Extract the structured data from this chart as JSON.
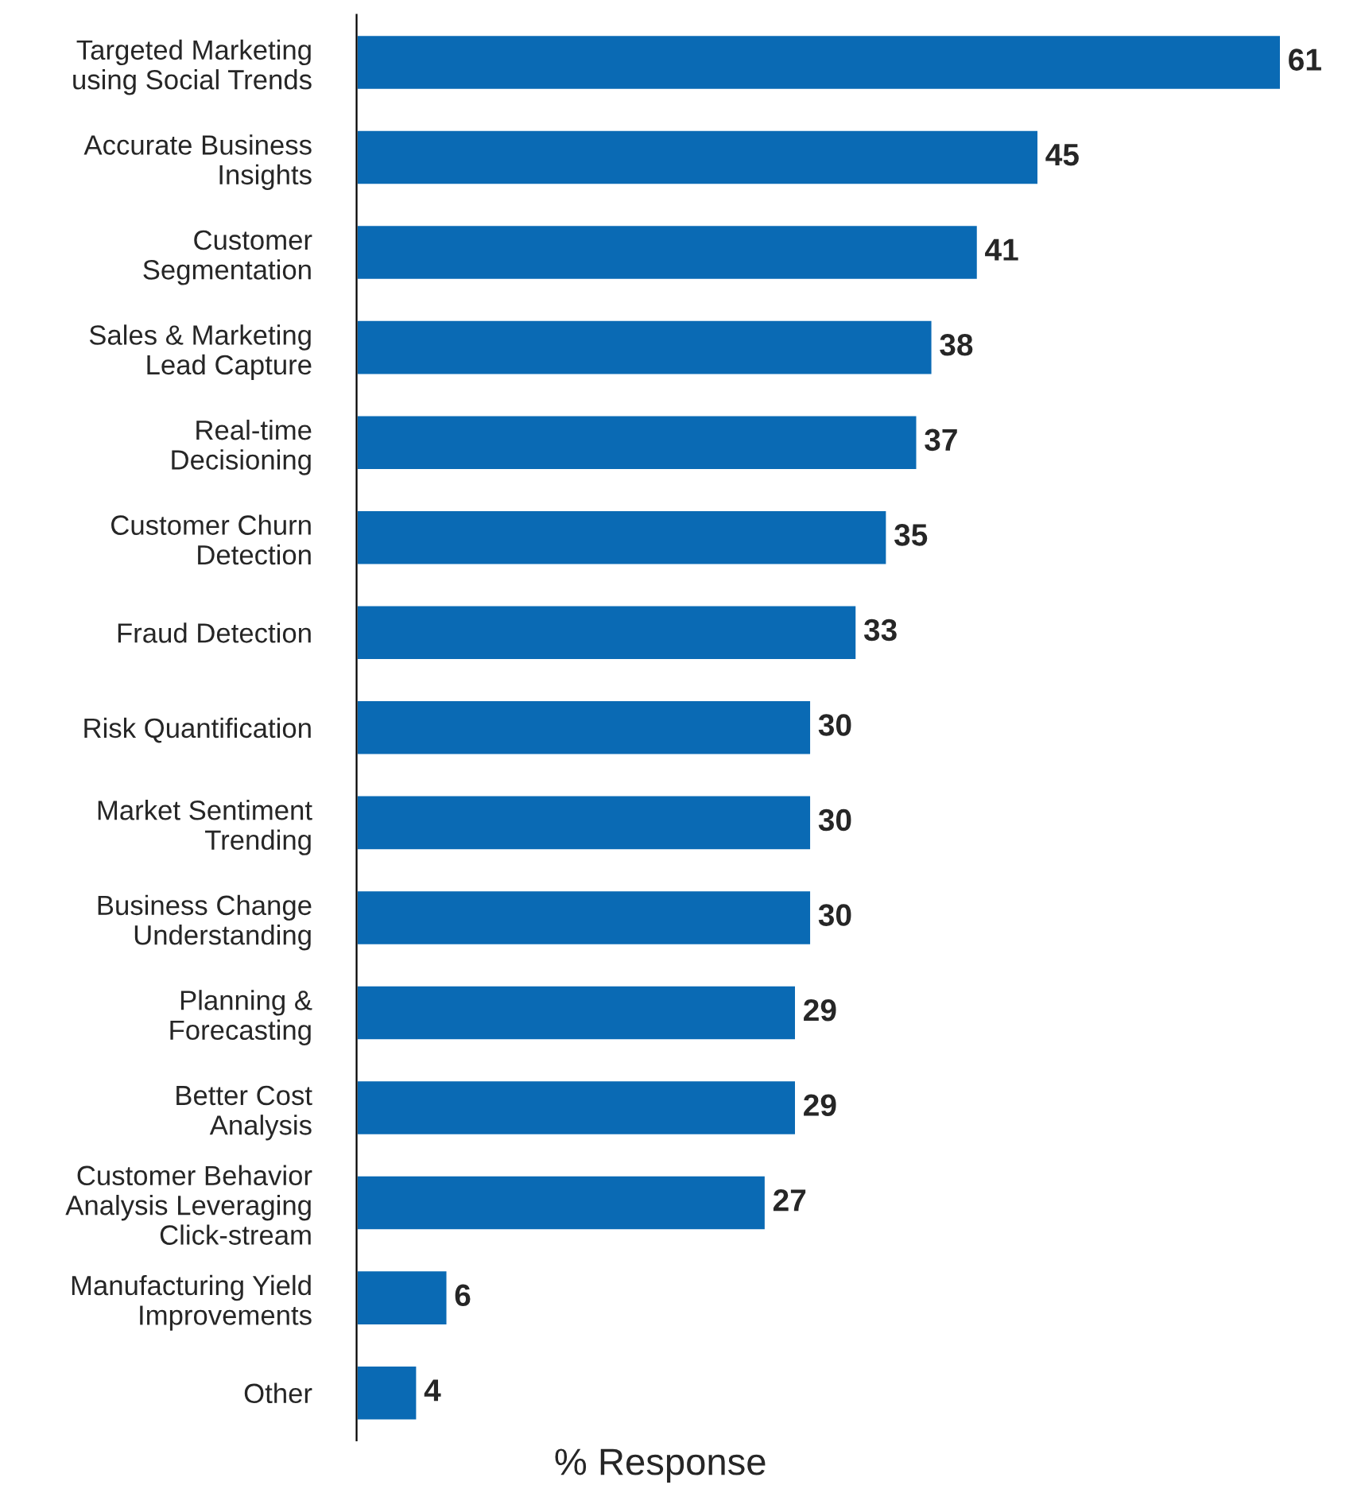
{
  "chart_data": {
    "type": "bar",
    "orientation": "horizontal",
    "xlabel": "% Response",
    "categories": [
      "Targeted Marketing\nusing Social Trends",
      "Accurate Business\nInsights",
      "Customer\nSegmentation",
      "Sales & Marketing\nLead Capture",
      "Real-time\nDecisioning",
      "Customer Churn\nDetection",
      "Fraud Detection",
      "Risk Quantification",
      "Market Sentiment\nTrending",
      "Business Change\nUnderstanding",
      "Planning &\nForecasting",
      "Better Cost\nAnalysis",
      "Customer Behavior\nAnalysis Leveraging\nClick-stream",
      "Manufacturing Yield\nImprovements",
      "Other"
    ],
    "values": [
      61,
      45,
      41,
      38,
      37,
      35,
      33,
      30,
      30,
      30,
      29,
      29,
      27,
      6,
      4
    ],
    "color": "#0a6ab4",
    "data_labels": true,
    "grid": false,
    "legend": false
  }
}
